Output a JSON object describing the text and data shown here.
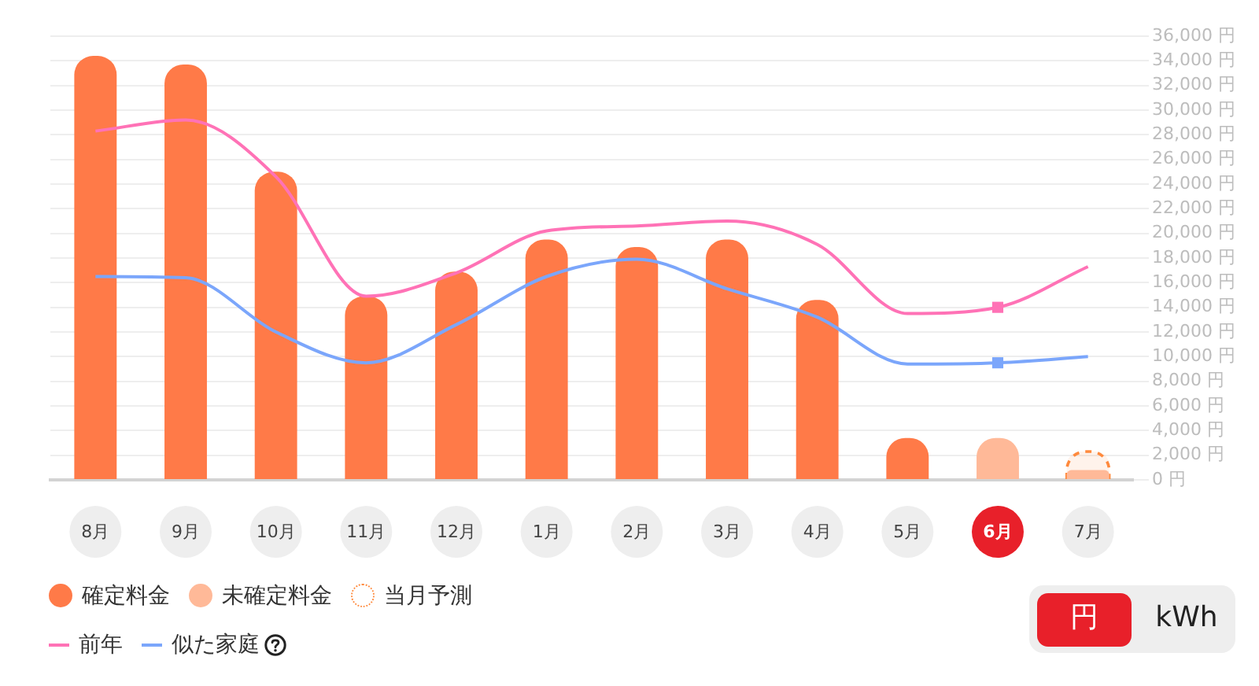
{
  "chart_data": {
    "type": "bar",
    "categories": [
      "8月",
      "9月",
      "10月",
      "11月",
      "12月",
      "1月",
      "2月",
      "3月",
      "4月",
      "5月",
      "6月",
      "7月"
    ],
    "series": [
      {
        "name": "確定料金",
        "color": "#ff7a48",
        "values": [
          34400,
          33700,
          25000,
          14900,
          16900,
          19500,
          18900,
          19500,
          14600,
          3400,
          null,
          null
        ]
      },
      {
        "name": "未確定料金",
        "color": "#ffb998",
        "values": [
          null,
          null,
          null,
          null,
          null,
          null,
          null,
          null,
          null,
          null,
          3400,
          800
        ]
      },
      {
        "name": "当月予測",
        "color": "#ff8a3d",
        "line_style": "dashed",
        "values": [
          null,
          null,
          null,
          null,
          null,
          null,
          null,
          null,
          null,
          null,
          null,
          2300
        ]
      },
      {
        "name": "前年",
        "type": "line",
        "color": "#ff72b6",
        "values": [
          28300,
          29200,
          24600,
          14900,
          16800,
          20200,
          20600,
          21000,
          19100,
          13500,
          14000,
          17300
        ]
      },
      {
        "name": "似た家庭",
        "type": "line",
        "color": "#7ba6fb",
        "values": [
          16500,
          16400,
          12000,
          9500,
          12600,
          16500,
          17900,
          15500,
          13200,
          9400,
          9500,
          10000
        ]
      },
      {
        "type": "scatter",
        "marker": "square",
        "color": "#ff72b6",
        "x": [
          "6月"
        ],
        "values": [
          14000
        ]
      },
      {
        "type": "scatter",
        "marker": "square",
        "color": "#7ba6fb",
        "x": [
          "6月"
        ],
        "values": [
          9500
        ]
      }
    ],
    "ylim": [
      0,
      36000
    ],
    "yticks": [
      {
        "value": 0,
        "label": "0 円"
      },
      {
        "value": 2000,
        "label": "2,000 円"
      },
      {
        "value": 4000,
        "label": "4,000 円"
      },
      {
        "value": 6000,
        "label": "6,000 円"
      },
      {
        "value": 8000,
        "label": "8,000 円"
      },
      {
        "value": 10000,
        "label": "10,000 円"
      },
      {
        "value": 12000,
        "label": "12,000 円"
      },
      {
        "value": 14000,
        "label": "14,000 円"
      },
      {
        "value": 16000,
        "label": "16,000 円"
      },
      {
        "value": 18000,
        "label": "18,000 円"
      },
      {
        "value": 20000,
        "label": "20,000 円"
      },
      {
        "value": 22000,
        "label": "22,000 円"
      },
      {
        "value": 24000,
        "label": "24,000 円"
      },
      {
        "value": 26000,
        "label": "26,000 円"
      },
      {
        "value": 28000,
        "label": "28,000 円"
      },
      {
        "value": 30000,
        "label": "30,000 円"
      },
      {
        "value": 32000,
        "label": "32,000 円"
      },
      {
        "value": 34000,
        "label": "34,000 円"
      },
      {
        "value": 36000,
        "label": "36,000 円"
      }
    ],
    "grid": "y",
    "legend": "bottom",
    "annotations": [
      "円",
      "kWh"
    ]
  }
}
